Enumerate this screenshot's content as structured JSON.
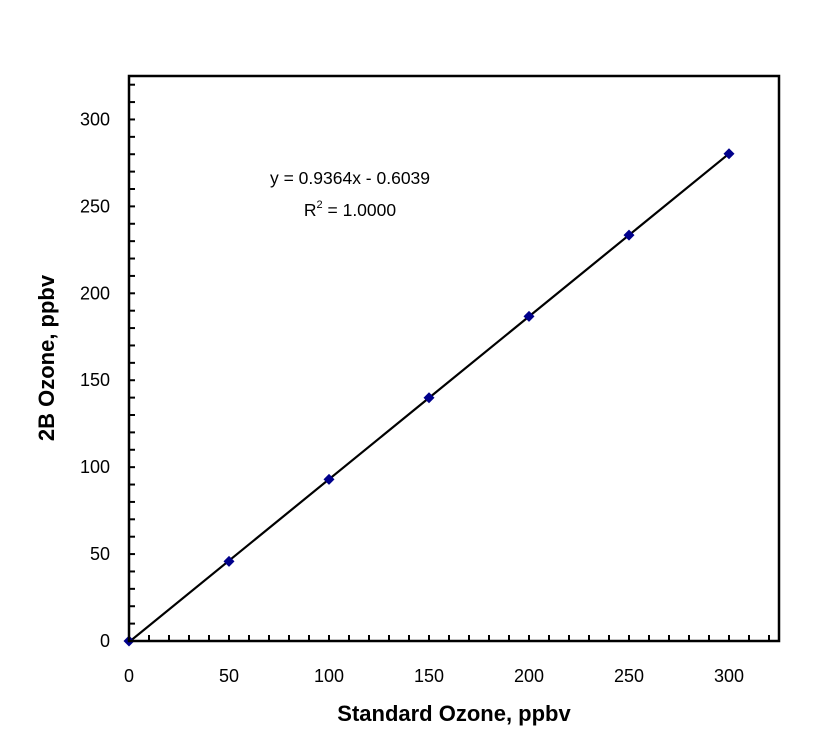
{
  "chart_data": {
    "type": "scatter",
    "title": "",
    "xlabel": "Standard Ozone, ppbv",
    "ylabel": "2B Ozone, ppbv",
    "xlim": [
      0,
      325
    ],
    "ylim": [
      0,
      325
    ],
    "xticks": [
      0,
      50,
      100,
      150,
      200,
      250,
      300
    ],
    "yticks": [
      0,
      50,
      100,
      150,
      200,
      250,
      300
    ],
    "minor_tick_step": 10,
    "grid": false,
    "marker": "diamond",
    "marker_color": "#00008B",
    "series": [
      {
        "x": [
          0,
          50,
          100,
          150,
          200,
          250,
          300
        ],
        "y": [
          0,
          45.8,
          93.0,
          139.9,
          186.7,
          233.5,
          280.3
        ]
      }
    ],
    "trendline": {
      "slope": 0.9364,
      "intercept": -0.6039,
      "x_range": [
        0,
        300
      ],
      "color": "#000000"
    },
    "annotations": {
      "equation": "y = 0.9364x - 0.6039",
      "r2_prefix": "R",
      "r2_sup": "2",
      "r2_value": " = 1.0000"
    }
  }
}
